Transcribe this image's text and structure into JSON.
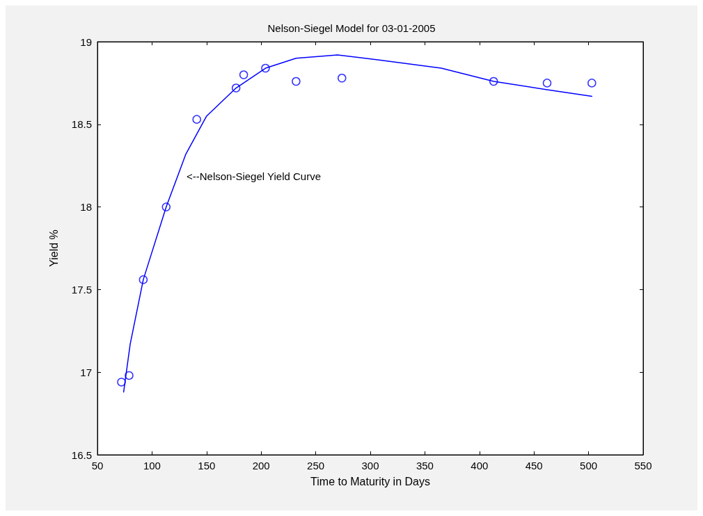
{
  "chart_data": {
    "type": "scatter",
    "title": "Nelson-Siegel Model for 03-01-2005",
    "xlabel": "Time to Maturity in Days",
    "ylabel": "Yield %",
    "xlim": [
      50,
      550
    ],
    "xticks": [
      50,
      100,
      150,
      200,
      250,
      300,
      350,
      400,
      450,
      500,
      550
    ],
    "ylim": [
      16.5,
      19
    ],
    "yticks": [
      16.5,
      17,
      17.5,
      18,
      18.5,
      19
    ],
    "grid": false,
    "annotations": [
      "<--Nelson-Siegel Yield Curve"
    ],
    "series": [
      {
        "marker": "circle",
        "color": "#0000ff",
        "x": [
          72,
          79,
          92,
          113,
          141,
          177,
          184,
          204,
          232,
          274,
          413,
          462,
          503
        ],
        "values": [
          16.94,
          16.98,
          17.56,
          18.0,
          18.53,
          18.72,
          18.8,
          18.84,
          18.76,
          18.78,
          18.76,
          18.75,
          18.75
        ]
      },
      {
        "type": "line",
        "marker": "none",
        "line_style": "solid",
        "color": "#0000ff",
        "x": [
          74,
          80,
          92,
          113,
          131,
          150,
          177,
          204,
          232,
          270,
          308,
          365,
          413,
          462,
          503
        ],
        "values": [
          16.88,
          17.17,
          17.56,
          18.0,
          18.32,
          18.55,
          18.72,
          18.84,
          18.9,
          18.92,
          18.89,
          18.84,
          18.76,
          18.71,
          18.67
        ]
      }
    ]
  }
}
